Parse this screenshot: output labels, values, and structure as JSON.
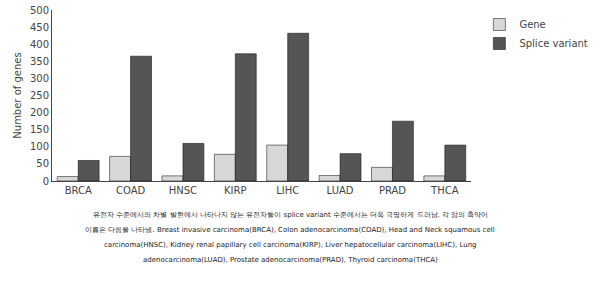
{
  "chart_data": {
    "type": "bar",
    "categories": [
      "BRCA",
      "COAD",
      "HNSC",
      "KIRP",
      "LIHC",
      "LUAD",
      "PRAD",
      "THCA"
    ],
    "series": [
      {
        "name": "Gene",
        "color": "#d8d8d8",
        "values": [
          13,
          72,
          15,
          78,
          105,
          16,
          40,
          15
        ]
      },
      {
        "name": "Splice variant",
        "color": "#555555",
        "values": [
          60,
          365,
          110,
          372,
          432,
          80,
          175,
          105
        ]
      }
    ],
    "ylabel": "Number of genes",
    "ylim": [
      0,
      500
    ],
    "yticks": [
      0,
      50,
      100,
      150,
      200,
      250,
      300,
      350,
      400,
      450,
      500
    ],
    "grid": false,
    "legend": "upper right",
    "annotations": [
      "유전자 수준에서의 차별 발현에서 나타나지 않는 유전자들이 splice variant 수준에서는 더욱 극명하게 드러남. 각 암의 축약어",
      "이름은 다음을 나타냄. Breast invasive carcinoma(BRCA), Colon adenocarcinoma(COAD), Head and Neck squamous cell",
      "carcinoma(HNSC), Kidney renal papillary cell carcinoma(KIRP), Liver hepatocellular carcinoma(LIHC), Lung",
      "adenocarcinoma(LUAD), Prostate adenocarcinoma(PRAD), Thyroid carcinoma(THCA)"
    ]
  }
}
